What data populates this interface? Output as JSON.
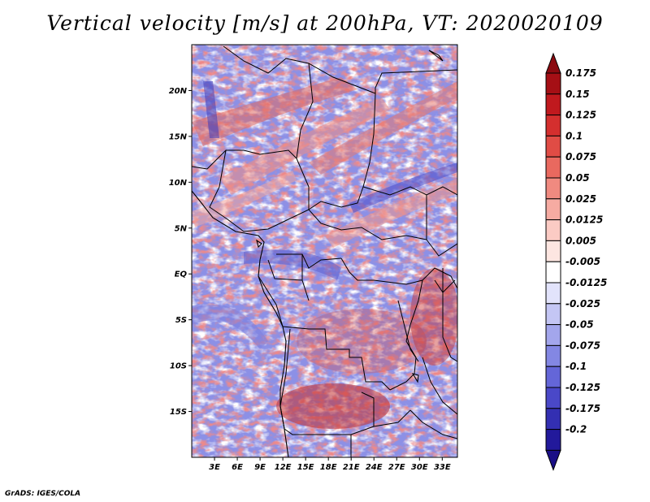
{
  "title": "Vertical velocity [m/s] at 200hPa, VT: 2020020109",
  "credit": "GrADS: IGES/COLA",
  "map": {
    "lon_min": 0,
    "lon_max": 35,
    "lat_min": -20,
    "lat_max": 25,
    "lat_ticks": [
      {
        "value": 20,
        "label": "20N"
      },
      {
        "value": 15,
        "label": "15N"
      },
      {
        "value": 10,
        "label": "10N"
      },
      {
        "value": 5,
        "label": "5N"
      },
      {
        "value": 0,
        "label": "EQ"
      },
      {
        "value": -5,
        "label": "5S"
      },
      {
        "value": -10,
        "label": "10S"
      },
      {
        "value": -15,
        "label": "15S"
      }
    ],
    "lon_ticks": [
      {
        "value": 3,
        "label": "3E"
      },
      {
        "value": 6,
        "label": "6E"
      },
      {
        "value": 9,
        "label": "9E"
      },
      {
        "value": 12,
        "label": "12E"
      },
      {
        "value": 15,
        "label": "15E"
      },
      {
        "value": 18,
        "label": "18E"
      },
      {
        "value": 21,
        "label": "21E"
      },
      {
        "value": 24,
        "label": "24E"
      },
      {
        "value": 27,
        "label": "27E"
      },
      {
        "value": 30,
        "label": "30E"
      },
      {
        "value": 33,
        "label": "33E"
      }
    ]
  },
  "colorbar": {
    "levels": [
      {
        "label": "0.175",
        "color": "#a50f15"
      },
      {
        "label": "0.15",
        "color": "#c0191e"
      },
      {
        "label": "0.125",
        "color": "#d42f2e"
      },
      {
        "label": "0.1",
        "color": "#e04c45"
      },
      {
        "label": "0.075",
        "color": "#e9695f"
      },
      {
        "label": "0.05",
        "color": "#f08a80"
      },
      {
        "label": "0.025",
        "color": "#f6aba2"
      },
      {
        "label": "0.0125",
        "color": "#fbcbc4"
      },
      {
        "label": "0.005",
        "color": "#fde6e1"
      },
      {
        "label": "-0.005",
        "color": "#ffffff"
      },
      {
        "label": "-0.0125",
        "color": "#e2e3fb"
      },
      {
        "label": "-0.025",
        "color": "#c4c6f4"
      },
      {
        "label": "-0.05",
        "color": "#a3a6ec"
      },
      {
        "label": "-0.075",
        "color": "#8387e3"
      },
      {
        "label": "-0.1",
        "color": "#6466d8"
      },
      {
        "label": "-0.125",
        "color": "#4a48c8"
      },
      {
        "label": "-0.175",
        "color": "#332fb2"
      },
      {
        "label": "-0.2",
        "color": "#22199b"
      }
    ],
    "over_color": "#8b0a10",
    "under_color": "#1a0f86"
  }
}
